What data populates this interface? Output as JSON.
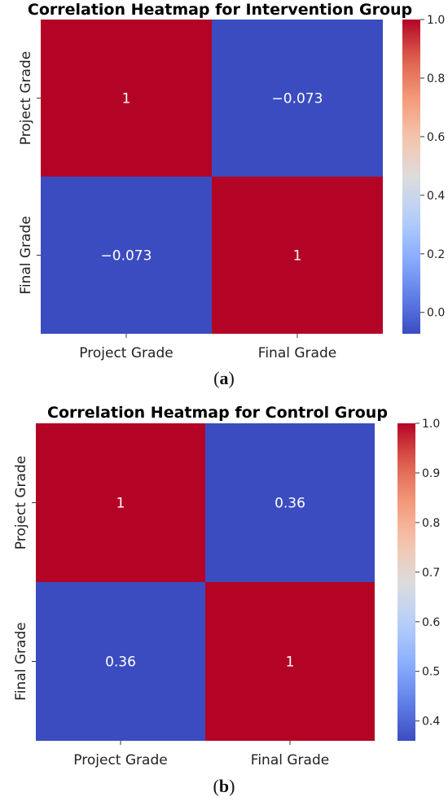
{
  "chart_data": [
    {
      "type": "heatmap",
      "title": "Correlation Heatmap for Intervention Group",
      "rows": [
        "Project Grade",
        "Final Grade"
      ],
      "columns": [
        "Project Grade",
        "Final Grade"
      ],
      "values": [
        [
          1,
          -0.073
        ],
        [
          -0.073,
          1
        ]
      ],
      "cell_labels": [
        [
          "1",
          "−0.073"
        ],
        [
          "−0.073",
          "1"
        ]
      ],
      "colormap": "coolwarm",
      "colorbar": {
        "range": [
          -0.073,
          1
        ],
        "ticks": [
          0.0,
          0.2,
          0.4,
          0.6,
          0.8,
          1.0
        ],
        "tick_labels": [
          "0.0",
          "0.2",
          "0.4",
          "0.6",
          "0.8",
          "1.0"
        ]
      },
      "caption": "a"
    },
    {
      "type": "heatmap",
      "title": "Correlation Heatmap for Control Group",
      "rows": [
        "Project Grade",
        "Final Grade"
      ],
      "columns": [
        "Project Grade",
        "Final Grade"
      ],
      "values": [
        [
          1,
          0.36
        ],
        [
          0.36,
          1
        ]
      ],
      "cell_labels": [
        [
          "1",
          "0.36"
        ],
        [
          "0.36",
          "1"
        ]
      ],
      "colormap": "coolwarm",
      "colorbar": {
        "range": [
          0.36,
          1
        ],
        "ticks": [
          0.4,
          0.5,
          0.6,
          0.7,
          0.8,
          0.9,
          1.0
        ],
        "tick_labels": [
          "0.4",
          "0.5",
          "0.6",
          "0.7",
          "0.8",
          "0.9",
          "1.0"
        ]
      },
      "caption": "b"
    }
  ],
  "colors": {
    "high": "#b40426",
    "low": "#3b4cc0",
    "mid": "#dddcdc"
  }
}
